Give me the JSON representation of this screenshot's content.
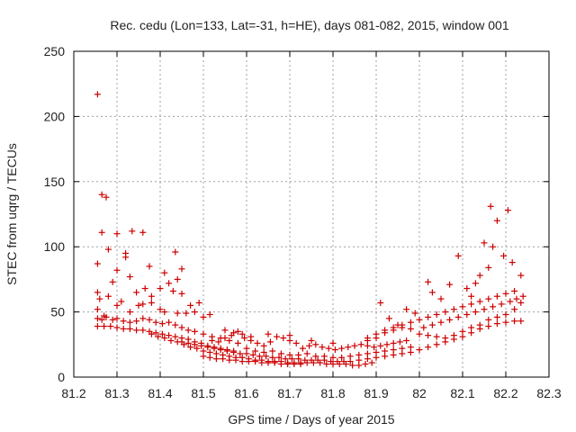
{
  "chart_data": {
    "type": "scatter",
    "title": "Rec. cedu (Lon=133, Lat=-31, h=HE), days 081-082, 2015, window 001",
    "xlabel": "GPS time / Days of year 2015",
    "ylabel": "STEC from uqrg / TECUs",
    "xlim": [
      81.2,
      82.3
    ],
    "ylim": [
      0,
      250
    ],
    "x_ticks": [
      "81.2",
      "81.3",
      "81.4",
      "81.5",
      "81.6",
      "81.7",
      "81.8",
      "81.9",
      "82",
      "82.1",
      "82.2",
      "82.3"
    ],
    "x_tick_values": [
      81.2,
      81.3,
      81.4,
      81.5,
      81.6,
      81.7,
      81.8,
      81.9,
      82.0,
      82.1,
      82.2,
      82.3
    ],
    "y_ticks": [
      "0",
      "50",
      "100",
      "150",
      "200",
      "250"
    ],
    "y_tick_values": [
      0,
      50,
      100,
      150,
      200,
      250
    ],
    "grid": true,
    "marker": "plus",
    "series": [
      {
        "name": "STEC",
        "color": "#cc0000",
        "points": [
          [
            81.255,
            217
          ],
          [
            81.255,
            87
          ],
          [
            81.265,
            140
          ],
          [
            81.275,
            138
          ],
          [
            81.265,
            111
          ],
          [
            81.3,
            110
          ],
          [
            81.335,
            112
          ],
          [
            81.36,
            111
          ],
          [
            81.28,
            98
          ],
          [
            81.32,
            95
          ],
          [
            81.32,
            92
          ],
          [
            81.435,
            96
          ],
          [
            81.375,
            85
          ],
          [
            81.3,
            82
          ],
          [
            81.45,
            83
          ],
          [
            81.44,
            75
          ],
          [
            81.41,
            80
          ],
          [
            81.255,
            65
          ],
          [
            81.26,
            60
          ],
          [
            81.29,
            73
          ],
          [
            81.33,
            77
          ],
          [
            81.345,
            65
          ],
          [
            81.365,
            68
          ],
          [
            81.38,
            62
          ],
          [
            81.4,
            68
          ],
          [
            81.42,
            72
          ],
          [
            81.43,
            66
          ],
          [
            81.45,
            64
          ],
          [
            81.47,
            55
          ],
          [
            81.49,
            57
          ],
          [
            81.5,
            46
          ],
          [
            81.515,
            48
          ],
          [
            81.255,
            52
          ],
          [
            81.27,
            47
          ],
          [
            81.28,
            62
          ],
          [
            81.3,
            55
          ],
          [
            81.31,
            58
          ],
          [
            81.33,
            50
          ],
          [
            81.35,
            55
          ],
          [
            81.36,
            56
          ],
          [
            81.38,
            57
          ],
          [
            81.4,
            52
          ],
          [
            81.41,
            50
          ],
          [
            81.44,
            49
          ],
          [
            81.46,
            49
          ],
          [
            81.48,
            50
          ],
          [
            81.255,
            45
          ],
          [
            81.265,
            44
          ],
          [
            81.275,
            46
          ],
          [
            81.29,
            44
          ],
          [
            81.3,
            45
          ],
          [
            81.315,
            43
          ],
          [
            81.33,
            42
          ],
          [
            81.345,
            43
          ],
          [
            81.36,
            45
          ],
          [
            81.375,
            44
          ],
          [
            81.39,
            42
          ],
          [
            81.405,
            41
          ],
          [
            81.42,
            42
          ],
          [
            81.435,
            40
          ],
          [
            81.45,
            38
          ],
          [
            81.465,
            36
          ],
          [
            81.48,
            35
          ],
          [
            81.5,
            33
          ],
          [
            81.52,
            31
          ],
          [
            81.54,
            30
          ],
          [
            81.56,
            28
          ],
          [
            81.58,
            26
          ],
          [
            81.255,
            39
          ],
          [
            81.27,
            39
          ],
          [
            81.285,
            39
          ],
          [
            81.3,
            38
          ],
          [
            81.315,
            37
          ],
          [
            81.33,
            37
          ],
          [
            81.345,
            36
          ],
          [
            81.36,
            36
          ],
          [
            81.375,
            35
          ],
          [
            81.39,
            34
          ],
          [
            81.405,
            33
          ],
          [
            81.42,
            32
          ],
          [
            81.435,
            31
          ],
          [
            81.45,
            30
          ],
          [
            81.465,
            29
          ],
          [
            81.48,
            27
          ],
          [
            81.495,
            26
          ],
          [
            81.51,
            24
          ],
          [
            81.525,
            23
          ],
          [
            81.54,
            22
          ],
          [
            81.555,
            21
          ],
          [
            81.57,
            20
          ],
          [
            81.38,
            33
          ],
          [
            81.395,
            31
          ],
          [
            81.41,
            30
          ],
          [
            81.425,
            28
          ],
          [
            81.44,
            27
          ],
          [
            81.455,
            25
          ],
          [
            81.47,
            23
          ],
          [
            81.485,
            22
          ],
          [
            81.5,
            20
          ],
          [
            81.515,
            19
          ],
          [
            81.53,
            18
          ],
          [
            81.545,
            17
          ],
          [
            81.56,
            16
          ],
          [
            81.575,
            15
          ],
          [
            81.59,
            15
          ],
          [
            81.605,
            14
          ],
          [
            81.62,
            13
          ],
          [
            81.635,
            13
          ],
          [
            81.65,
            12
          ],
          [
            81.665,
            12
          ],
          [
            81.68,
            12
          ],
          [
            81.695,
            11
          ],
          [
            81.71,
            11
          ],
          [
            81.725,
            11
          ],
          [
            81.74,
            11
          ],
          [
            81.755,
            11
          ],
          [
            81.77,
            11
          ],
          [
            81.785,
            10
          ],
          [
            81.8,
            10
          ],
          [
            81.815,
            10
          ],
          [
            81.83,
            10
          ],
          [
            81.845,
            9
          ],
          [
            81.86,
            9
          ],
          [
            81.875,
            10
          ],
          [
            81.89,
            11
          ],
          [
            81.45,
            27
          ],
          [
            81.465,
            26
          ],
          [
            81.48,
            25
          ],
          [
            81.495,
            24
          ],
          [
            81.51,
            23
          ],
          [
            81.525,
            22
          ],
          [
            81.54,
            21
          ],
          [
            81.555,
            20
          ],
          [
            81.57,
            19
          ],
          [
            81.585,
            18
          ],
          [
            81.6,
            18
          ],
          [
            81.615,
            17
          ],
          [
            81.63,
            16
          ],
          [
            81.645,
            16
          ],
          [
            81.66,
            15
          ],
          [
            81.675,
            15
          ],
          [
            81.69,
            14
          ],
          [
            81.705,
            14
          ],
          [
            81.72,
            14
          ],
          [
            81.735,
            13
          ],
          [
            81.75,
            13
          ],
          [
            81.765,
            13
          ],
          [
            81.78,
            13
          ],
          [
            81.795,
            12
          ],
          [
            81.81,
            12
          ],
          [
            81.825,
            12
          ],
          [
            81.5,
            16
          ],
          [
            81.515,
            15
          ],
          [
            81.53,
            14
          ],
          [
            81.545,
            14
          ],
          [
            81.56,
            13
          ],
          [
            81.575,
            13
          ],
          [
            81.59,
            12
          ],
          [
            81.605,
            12
          ],
          [
            81.62,
            12
          ],
          [
            81.635,
            11
          ],
          [
            81.65,
            11
          ],
          [
            81.665,
            11
          ],
          [
            81.68,
            10
          ],
          [
            81.695,
            10
          ],
          [
            81.71,
            10
          ],
          [
            81.725,
            10
          ],
          [
            81.52,
            28
          ],
          [
            81.535,
            27
          ],
          [
            81.55,
            30
          ],
          [
            81.565,
            32
          ],
          [
            81.58,
            35
          ],
          [
            81.595,
            30
          ],
          [
            81.61,
            28
          ],
          [
            81.625,
            26
          ],
          [
            81.64,
            24
          ],
          [
            81.655,
            27
          ],
          [
            81.67,
            31
          ],
          [
            81.685,
            30
          ],
          [
            81.7,
            28
          ],
          [
            81.715,
            26
          ],
          [
            81.73,
            22
          ],
          [
            81.745,
            24
          ],
          [
            81.76,
            25
          ],
          [
            81.775,
            23
          ],
          [
            81.79,
            22
          ],
          [
            81.805,
            21
          ],
          [
            81.82,
            22
          ],
          [
            81.835,
            23
          ],
          [
            81.85,
            24
          ],
          [
            81.865,
            25
          ],
          [
            81.88,
            24
          ],
          [
            81.895,
            23
          ],
          [
            81.91,
            24
          ],
          [
            81.925,
            25
          ],
          [
            81.94,
            26
          ],
          [
            81.955,
            27
          ],
          [
            81.97,
            28
          ],
          [
            81.55,
            36
          ],
          [
            81.57,
            34
          ],
          [
            81.59,
            33
          ],
          [
            81.61,
            31
          ],
          [
            81.65,
            33
          ],
          [
            81.7,
            32
          ],
          [
            81.75,
            28
          ],
          [
            81.8,
            26
          ],
          [
            81.88,
            28
          ],
          [
            81.9,
            30
          ],
          [
            81.92,
            34
          ],
          [
            81.94,
            36
          ],
          [
            81.96,
            38
          ],
          [
            81.98,
            37
          ],
          [
            81.6,
            22
          ],
          [
            81.62,
            20
          ],
          [
            81.64,
            19
          ],
          [
            81.66,
            20
          ],
          [
            81.68,
            18
          ],
          [
            81.7,
            17
          ],
          [
            81.72,
            17
          ],
          [
            81.74,
            18
          ],
          [
            81.76,
            16
          ],
          [
            81.78,
            16
          ],
          [
            81.8,
            15
          ],
          [
            81.82,
            15
          ],
          [
            81.84,
            16
          ],
          [
            81.86,
            17
          ],
          [
            81.88,
            18
          ],
          [
            81.9,
            19
          ],
          [
            81.92,
            20
          ],
          [
            81.94,
            21
          ],
          [
            81.96,
            22
          ],
          [
            81.98,
            23
          ],
          [
            81.84,
            12
          ],
          [
            81.86,
            13
          ],
          [
            81.88,
            14
          ],
          [
            81.9,
            15
          ],
          [
            81.92,
            16
          ],
          [
            81.94,
            17
          ],
          [
            81.96,
            18
          ],
          [
            81.98,
            19
          ],
          [
            82.0,
            21
          ],
          [
            82.02,
            23
          ],
          [
            82.04,
            25
          ],
          [
            82.06,
            27
          ],
          [
            82.08,
            29
          ],
          [
            82.1,
            31
          ],
          [
            82.12,
            34
          ],
          [
            82.14,
            37
          ],
          [
            82.16,
            39
          ],
          [
            82.18,
            41
          ],
          [
            82.2,
            42
          ],
          [
            82.22,
            43
          ],
          [
            82.235,
            43
          ],
          [
            81.88,
            30
          ],
          [
            81.9,
            33
          ],
          [
            81.92,
            36
          ],
          [
            81.94,
            38
          ],
          [
            81.96,
            40
          ],
          [
            81.98,
            42
          ],
          [
            82.0,
            44
          ],
          [
            82.02,
            46
          ],
          [
            82.04,
            48
          ],
          [
            82.06,
            50
          ],
          [
            82.08,
            52
          ],
          [
            82.1,
            54
          ],
          [
            82.12,
            56
          ],
          [
            82.14,
            58
          ],
          [
            82.16,
            60
          ],
          [
            82.18,
            62
          ],
          [
            82.2,
            64
          ],
          [
            82.22,
            66
          ],
          [
            81.91,
            57
          ],
          [
            81.93,
            45
          ],
          [
            81.95,
            40
          ],
          [
            81.97,
            52
          ],
          [
            81.99,
            49
          ],
          [
            82.02,
            73
          ],
          [
            82.03,
            65
          ],
          [
            82.05,
            60
          ],
          [
            82.07,
            71
          ],
          [
            82.09,
            93
          ],
          [
            82.11,
            68
          ],
          [
            82.13,
            72
          ],
          [
            82.15,
            103
          ],
          [
            82.165,
            131
          ],
          [
            82.18,
            120
          ],
          [
            82.205,
            128
          ],
          [
            82.195,
            93
          ],
          [
            82.215,
            88
          ],
          [
            82.235,
            78
          ],
          [
            82.24,
            62
          ],
          [
            82.17,
            100
          ],
          [
            82.16,
            84
          ],
          [
            82.14,
            78
          ],
          [
            82.12,
            62
          ],
          [
            82.0,
            33
          ],
          [
            82.02,
            32
          ],
          [
            82.04,
            31
          ],
          [
            82.06,
            30
          ],
          [
            82.08,
            32
          ],
          [
            82.1,
            35
          ],
          [
            82.12,
            38
          ],
          [
            82.14,
            40
          ],
          [
            82.16,
            44
          ],
          [
            82.18,
            46
          ],
          [
            82.2,
            48
          ],
          [
            82.22,
            52
          ],
          [
            82.235,
            57
          ],
          [
            82.01,
            38
          ],
          [
            82.03,
            40
          ],
          [
            82.05,
            42
          ],
          [
            82.07,
            44
          ],
          [
            82.09,
            46
          ],
          [
            82.11,
            48
          ],
          [
            82.13,
            50
          ],
          [
            82.15,
            52
          ],
          [
            82.17,
            54
          ],
          [
            82.19,
            56
          ],
          [
            82.21,
            58
          ],
          [
            82.225,
            60
          ]
        ]
      }
    ]
  }
}
